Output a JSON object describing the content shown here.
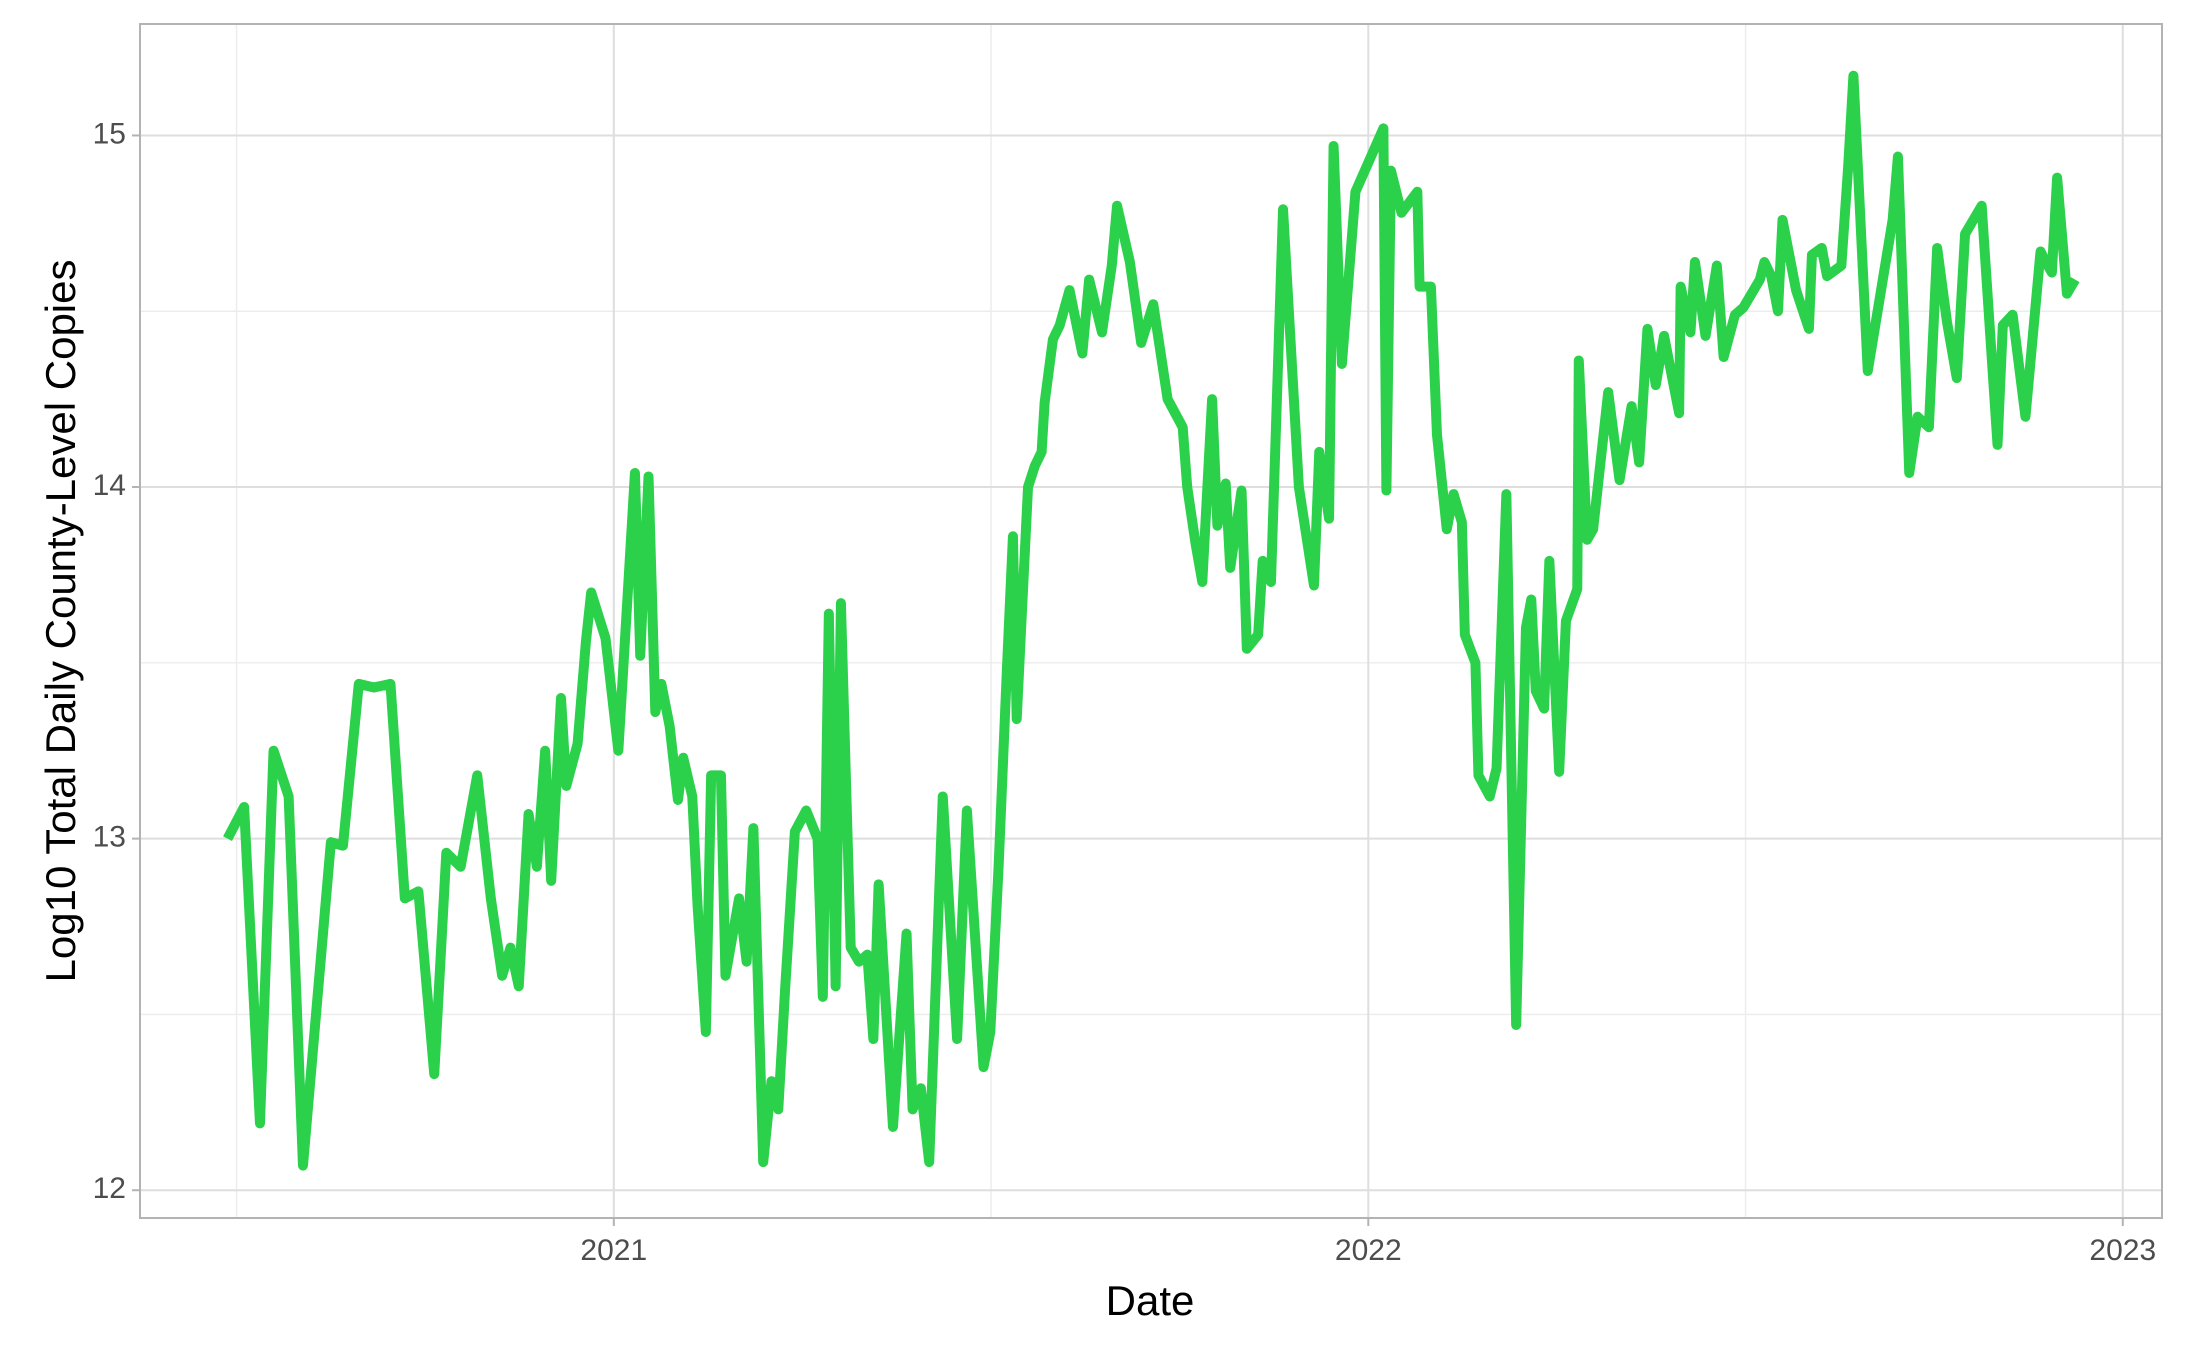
{
  "chart_data": {
    "type": "line",
    "x_label": "Date",
    "y_label": "Log10 Total Daily County-Level Copies",
    "xlim": [
      2020.372,
      2023.052
    ],
    "xticks": [
      2021,
      2022,
      2023
    ],
    "minor_xticks": [
      2020.5,
      2021.5,
      2022.5
    ],
    "ylim": [
      11.921,
      15.317
    ],
    "yticks": [
      12,
      13,
      14,
      15
    ],
    "minor_yticks": [
      12.5,
      13.5,
      14.5
    ],
    "grid": true,
    "series": [
      {
        "color": "#2bd14b",
        "x": [
          2020.488,
          2020.51,
          2020.531,
          2020.549,
          2020.569,
          2020.588,
          2020.625,
          2020.641,
          2020.662,
          2020.682,
          2020.704,
          2020.723,
          2020.741,
          2020.762,
          2020.778,
          2020.797,
          2020.819,
          2020.837,
          2020.852,
          2020.863,
          2020.874,
          2020.887,
          2020.898,
          2020.909,
          2020.917,
          2020.93,
          2020.937,
          2020.952,
          2020.963,
          2020.97,
          2020.989,
          2021.006,
          2021.028,
          2021.035,
          2021.046,
          2021.055,
          2021.063,
          2021.074,
          2021.085,
          2021.092,
          2021.104,
          2021.111,
          2021.122,
          2021.129,
          2021.142,
          2021.148,
          2021.166,
          2021.176,
          2021.185,
          2021.198,
          2021.209,
          2021.218,
          2021.227,
          2021.24,
          2021.255,
          2021.27,
          2021.277,
          2021.285,
          2021.294,
          2021.301,
          2021.314,
          2021.325,
          2021.336,
          2021.344,
          2021.351,
          2021.37,
          2021.388,
          2021.396,
          2021.407,
          2021.418,
          2021.436,
          2021.455,
          2021.468,
          2021.49,
          2021.499,
          2021.51,
          2021.521,
          2021.529,
          2021.534,
          2021.549,
          2021.558,
          2021.567,
          2021.571,
          2021.582,
          2021.591,
          2021.604,
          2021.621,
          2021.63,
          2021.647,
          2021.66,
          2021.667,
          2021.684,
          2021.699,
          2021.715,
          2021.734,
          2021.754,
          2021.76,
          2021.771,
          2021.78,
          2021.793,
          2021.8,
          2021.811,
          2021.817,
          2021.832,
          2021.839,
          2021.854,
          2021.86,
          2021.871,
          2021.887,
          2021.908,
          2021.928,
          2021.935,
          2021.948,
          2021.954,
          2021.965,
          2021.983,
          2022.02,
          2022.024,
          2022.03,
          2022.044,
          2022.065,
          2022.068,
          2022.083,
          2022.091,
          2022.104,
          2022.113,
          2022.124,
          2022.128,
          2022.142,
          2022.146,
          2022.161,
          2022.17,
          2022.183,
          2022.196,
          2022.209,
          2022.216,
          2022.222,
          2022.233,
          2022.24,
          2022.253,
          2022.262,
          2022.277,
          2022.279,
          2022.29,
          2022.298,
          2022.318,
          2022.333,
          2022.349,
          2022.359,
          2022.37,
          2022.381,
          2022.392,
          2022.412,
          2022.414,
          2022.427,
          2022.433,
          2022.447,
          2022.462,
          2022.471,
          2022.486,
          2022.497,
          2022.508,
          2022.519,
          2022.525,
          2022.534,
          2022.543,
          2022.549,
          2022.567,
          2022.584,
          2022.588,
          2022.601,
          2022.608,
          2022.627,
          2022.636,
          2022.643,
          2022.662,
          2022.695,
          2022.702,
          2022.717,
          2022.728,
          2022.743,
          2022.754,
          2022.767,
          2022.78,
          2022.791,
          2022.813,
          2022.834,
          2022.841,
          2022.854,
          2022.871,
          2022.891,
          2022.898,
          2022.906,
          2022.913,
          2022.926,
          2022.937
        ],
        "values": [
          13.0,
          13.09,
          12.19,
          13.25,
          13.12,
          12.07,
          12.99,
          12.98,
          13.44,
          13.43,
          13.44,
          12.83,
          12.85,
          12.33,
          12.96,
          12.92,
          13.18,
          12.83,
          12.61,
          12.69,
          12.58,
          13.07,
          12.92,
          13.25,
          12.88,
          13.4,
          13.15,
          13.27,
          13.56,
          13.7,
          13.57,
          13.25,
          14.04,
          13.52,
          14.03,
          13.36,
          13.44,
          13.32,
          13.11,
          13.23,
          13.12,
          12.81,
          12.45,
          13.18,
          13.18,
          12.61,
          12.83,
          12.65,
          13.03,
          12.08,
          12.31,
          12.23,
          12.57,
          13.02,
          13.08,
          13.0,
          12.55,
          13.64,
          12.58,
          13.67,
          12.69,
          12.65,
          12.67,
          12.43,
          12.87,
          12.18,
          12.73,
          12.23,
          12.29,
          12.08,
          13.12,
          12.43,
          13.08,
          12.35,
          12.45,
          12.92,
          13.48,
          13.86,
          13.34,
          14.0,
          14.06,
          14.1,
          14.24,
          14.42,
          14.46,
          14.56,
          14.38,
          14.59,
          14.44,
          14.63,
          14.8,
          14.64,
          14.41,
          14.52,
          14.25,
          14.17,
          14.0,
          13.84,
          13.73,
          14.25,
          13.89,
          14.01,
          13.77,
          13.99,
          13.54,
          13.58,
          13.79,
          13.73,
          14.79,
          14.0,
          13.72,
          14.1,
          13.91,
          14.97,
          14.35,
          14.84,
          15.02,
          13.99,
          14.9,
          14.78,
          14.84,
          14.57,
          14.57,
          14.15,
          13.88,
          13.98,
          13.9,
          13.58,
          13.5,
          13.18,
          13.12,
          13.2,
          13.98,
          12.47,
          13.6,
          13.68,
          13.42,
          13.37,
          13.79,
          13.19,
          13.62,
          13.71,
          14.36,
          13.85,
          13.88,
          14.27,
          14.02,
          14.23,
          14.07,
          14.45,
          14.29,
          14.43,
          14.21,
          14.57,
          14.44,
          14.64,
          14.43,
          14.63,
          14.37,
          14.49,
          14.51,
          14.55,
          14.59,
          14.64,
          14.6,
          14.5,
          14.76,
          14.56,
          14.45,
          14.66,
          14.68,
          14.6,
          14.63,
          14.91,
          15.17,
          14.33,
          14.76,
          14.94,
          14.04,
          14.2,
          14.17,
          14.68,
          14.47,
          14.31,
          14.72,
          14.8,
          14.12,
          14.46,
          14.49,
          14.2,
          14.67,
          14.64,
          14.61,
          14.88,
          14.55,
          14.59
        ]
      }
    ]
  }
}
